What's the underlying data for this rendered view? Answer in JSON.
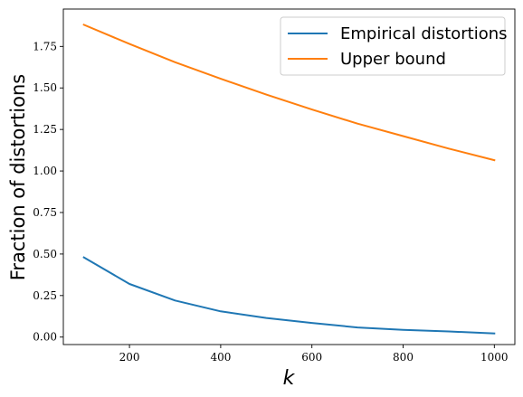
{
  "chart_data": {
    "type": "line",
    "xlabel": "k",
    "ylabel": "Fraction of distortions",
    "xlim": [
      55,
      1045
    ],
    "ylim": [
      -0.045,
      1.975
    ],
    "xticks": [
      200,
      400,
      600,
      800,
      1000
    ],
    "yticks": [
      0.0,
      0.25,
      0.5,
      0.75,
      1.0,
      1.25,
      1.5,
      1.75
    ],
    "xtick_labels": [
      "200",
      "400",
      "600",
      "800",
      "1000"
    ],
    "ytick_labels": [
      "0.00",
      "0.25",
      "0.50",
      "0.75",
      "1.00",
      "1.25",
      "1.50",
      "1.75"
    ],
    "grid": false,
    "legend_position": "upper right",
    "series": [
      {
        "name": "Empirical distortions",
        "color": "#1f77b4",
        "x": [
          100,
          200,
          300,
          400,
          500,
          600,
          700,
          800,
          900,
          1000
        ],
        "y": [
          0.48,
          0.32,
          0.22,
          0.155,
          0.115,
          0.085,
          0.058,
          0.043,
          0.034,
          0.022
        ]
      },
      {
        "name": "Upper bound",
        "color": "#ff7f0e",
        "x": [
          100,
          200,
          300,
          400,
          500,
          600,
          700,
          800,
          900,
          1000
        ],
        "y": [
          1.88,
          1.765,
          1.655,
          1.555,
          1.46,
          1.37,
          1.285,
          1.21,
          1.135,
          1.065
        ]
      }
    ]
  }
}
